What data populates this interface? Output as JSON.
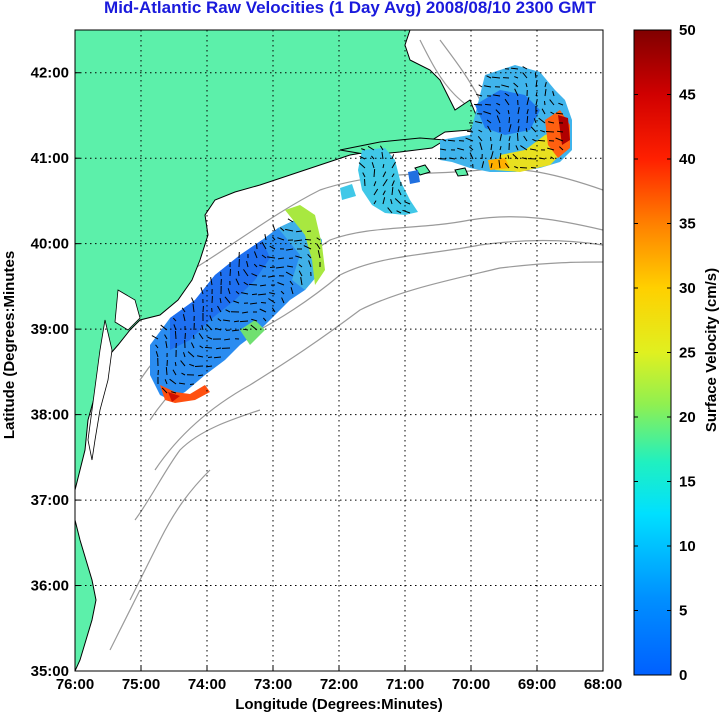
{
  "title": "Mid-Atlantic Raw Velocities (1 Day Avg) 2008/08/10 2300 GMT",
  "xlabel": "Longitude (Degrees:Minutes)",
  "ylabel": "Latitude (Degrees:Minutes",
  "colorbar_label": "Surface Velocity (cm/s)",
  "x_ticks": [
    "76:00",
    "75:00",
    "74:00",
    "73:00",
    "72:00",
    "71:00",
    "70:00",
    "69:00",
    "68:00"
  ],
  "y_ticks": [
    "42:00",
    "41:00",
    "40:00",
    "39:00",
    "38:00",
    "37:00",
    "36:00",
    "35:00"
  ],
  "colorbar_ticks": [
    "50",
    "45",
    "40",
    "35",
    "30",
    "25",
    "20",
    "15",
    "10",
    "5",
    "0"
  ],
  "colors": {
    "land": "#5cf0aa",
    "coast": "#000000",
    "bathymetry": "#9a9a9a",
    "title": "#1a1adc"
  },
  "chart_data": {
    "type": "heatmap",
    "title": "Mid-Atlantic Raw Velocities (1 Day Avg) 2008/08/10 2300 GMT",
    "xlabel": "Longitude (Degrees:Minutes)",
    "ylabel": "Latitude (Degrees:Minutes",
    "xlim": [
      -76,
      -68
    ],
    "ylim": [
      35,
      42.5
    ],
    "grid": true,
    "colorbar": {
      "label": "Surface Velocity (cm/s)",
      "range": [
        0,
        50
      ],
      "colormap": "jet"
    }
  }
}
